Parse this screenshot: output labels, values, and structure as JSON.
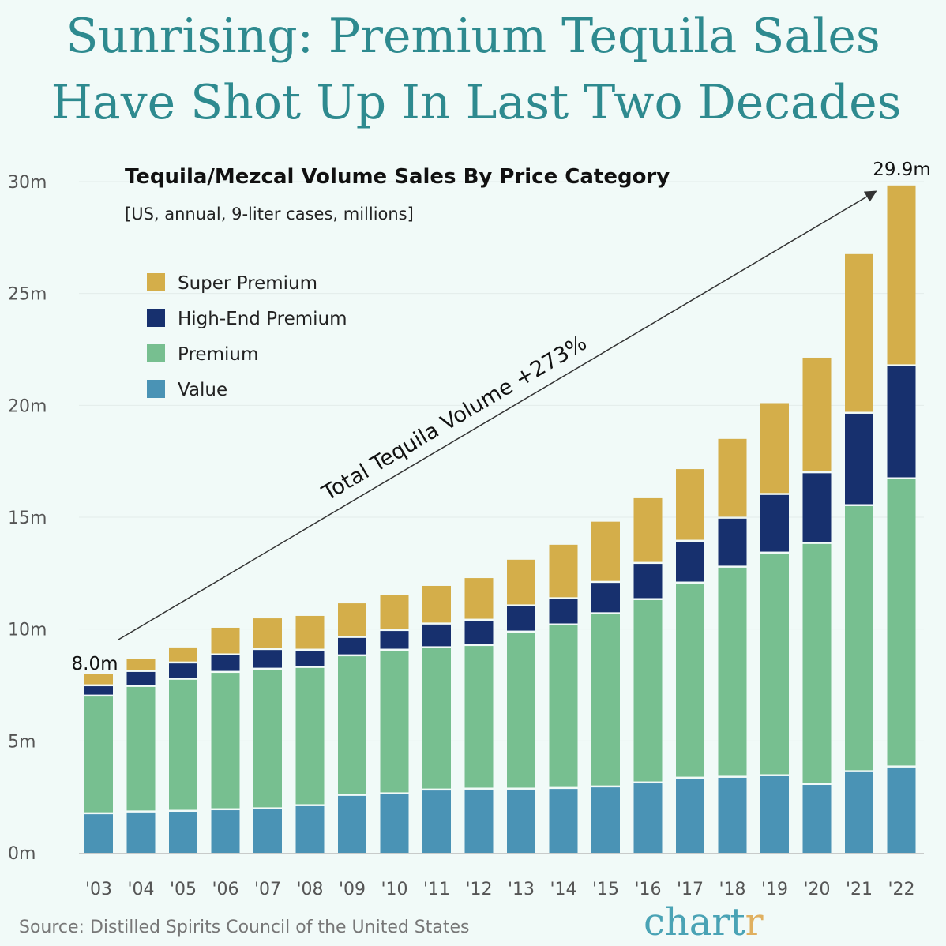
{
  "title_lines": [
    "Sunrising: Premium Tequila Sales",
    "Have Shot Up In Last Two Decades"
  ],
  "source": "Source: Distilled Spirits Council of the United States",
  "logo": {
    "main": "chart",
    "accent": "r"
  },
  "chart_data": {
    "type": "bar",
    "stacked": true,
    "title": "Tequila/Mezcal Volume Sales By Price Category",
    "subtitle": "[US, annual, 9-liter cases, millions]",
    "categories": [
      "'03",
      "'04",
      "'05",
      "'06",
      "'07",
      "'08",
      "'09",
      "'10",
      "'11",
      "'12",
      "'13",
      "'14",
      "'15",
      "'16",
      "'17",
      "'18",
      "'19",
      "'20",
      "'21",
      "'22"
    ],
    "series": [
      {
        "name": "Value",
        "color": "#4a93b5",
        "values": [
          1.76,
          1.84,
          1.87,
          1.94,
          1.98,
          2.12,
          2.58,
          2.65,
          2.82,
          2.86,
          2.86,
          2.89,
          2.96,
          3.14,
          3.35,
          3.39,
          3.46,
          3.07,
          3.64,
          3.85
        ]
      },
      {
        "name": "Premium",
        "color": "#77bf90",
        "values": [
          5.26,
          5.61,
          5.9,
          6.14,
          6.24,
          6.18,
          6.24,
          6.42,
          6.36,
          6.42,
          7.02,
          7.31,
          7.74,
          8.19,
          8.72,
          9.39,
          9.95,
          10.77,
          11.89,
          12.88
        ]
      },
      {
        "name": "High-End Premium",
        "color": "#17306e",
        "values": [
          0.46,
          0.67,
          0.73,
          0.78,
          0.88,
          0.77,
          0.82,
          0.88,
          1.06,
          1.13,
          1.17,
          1.17,
          1.4,
          1.62,
          1.87,
          2.19,
          2.62,
          3.16,
          4.13,
          5.05
        ]
      },
      {
        "name": "Super Premium",
        "color": "#d4ae4a",
        "values": [
          0.5,
          0.53,
          0.68,
          1.2,
          1.38,
          1.52,
          1.51,
          1.59,
          1.69,
          1.87,
          2.05,
          2.4,
          2.7,
          2.9,
          3.21,
          3.53,
          4.07,
          5.13,
          7.1,
          8.05
        ]
      }
    ],
    "legend_order": [
      "Super Premium",
      "High-End Premium",
      "Premium",
      "Value"
    ],
    "legend_placement": "top-left",
    "ylim": [
      0,
      30
    ],
    "yticks": [
      0,
      5,
      10,
      15,
      20,
      25,
      30
    ],
    "ytick_labels": [
      "0m",
      "5m",
      "10m",
      "15m",
      "20m",
      "25m",
      "30m"
    ],
    "grid": true,
    "annotations": {
      "start_label": "8.0m",
      "end_label": "29.9m",
      "arrow_text": "Total Tequila Volume +273%"
    }
  }
}
